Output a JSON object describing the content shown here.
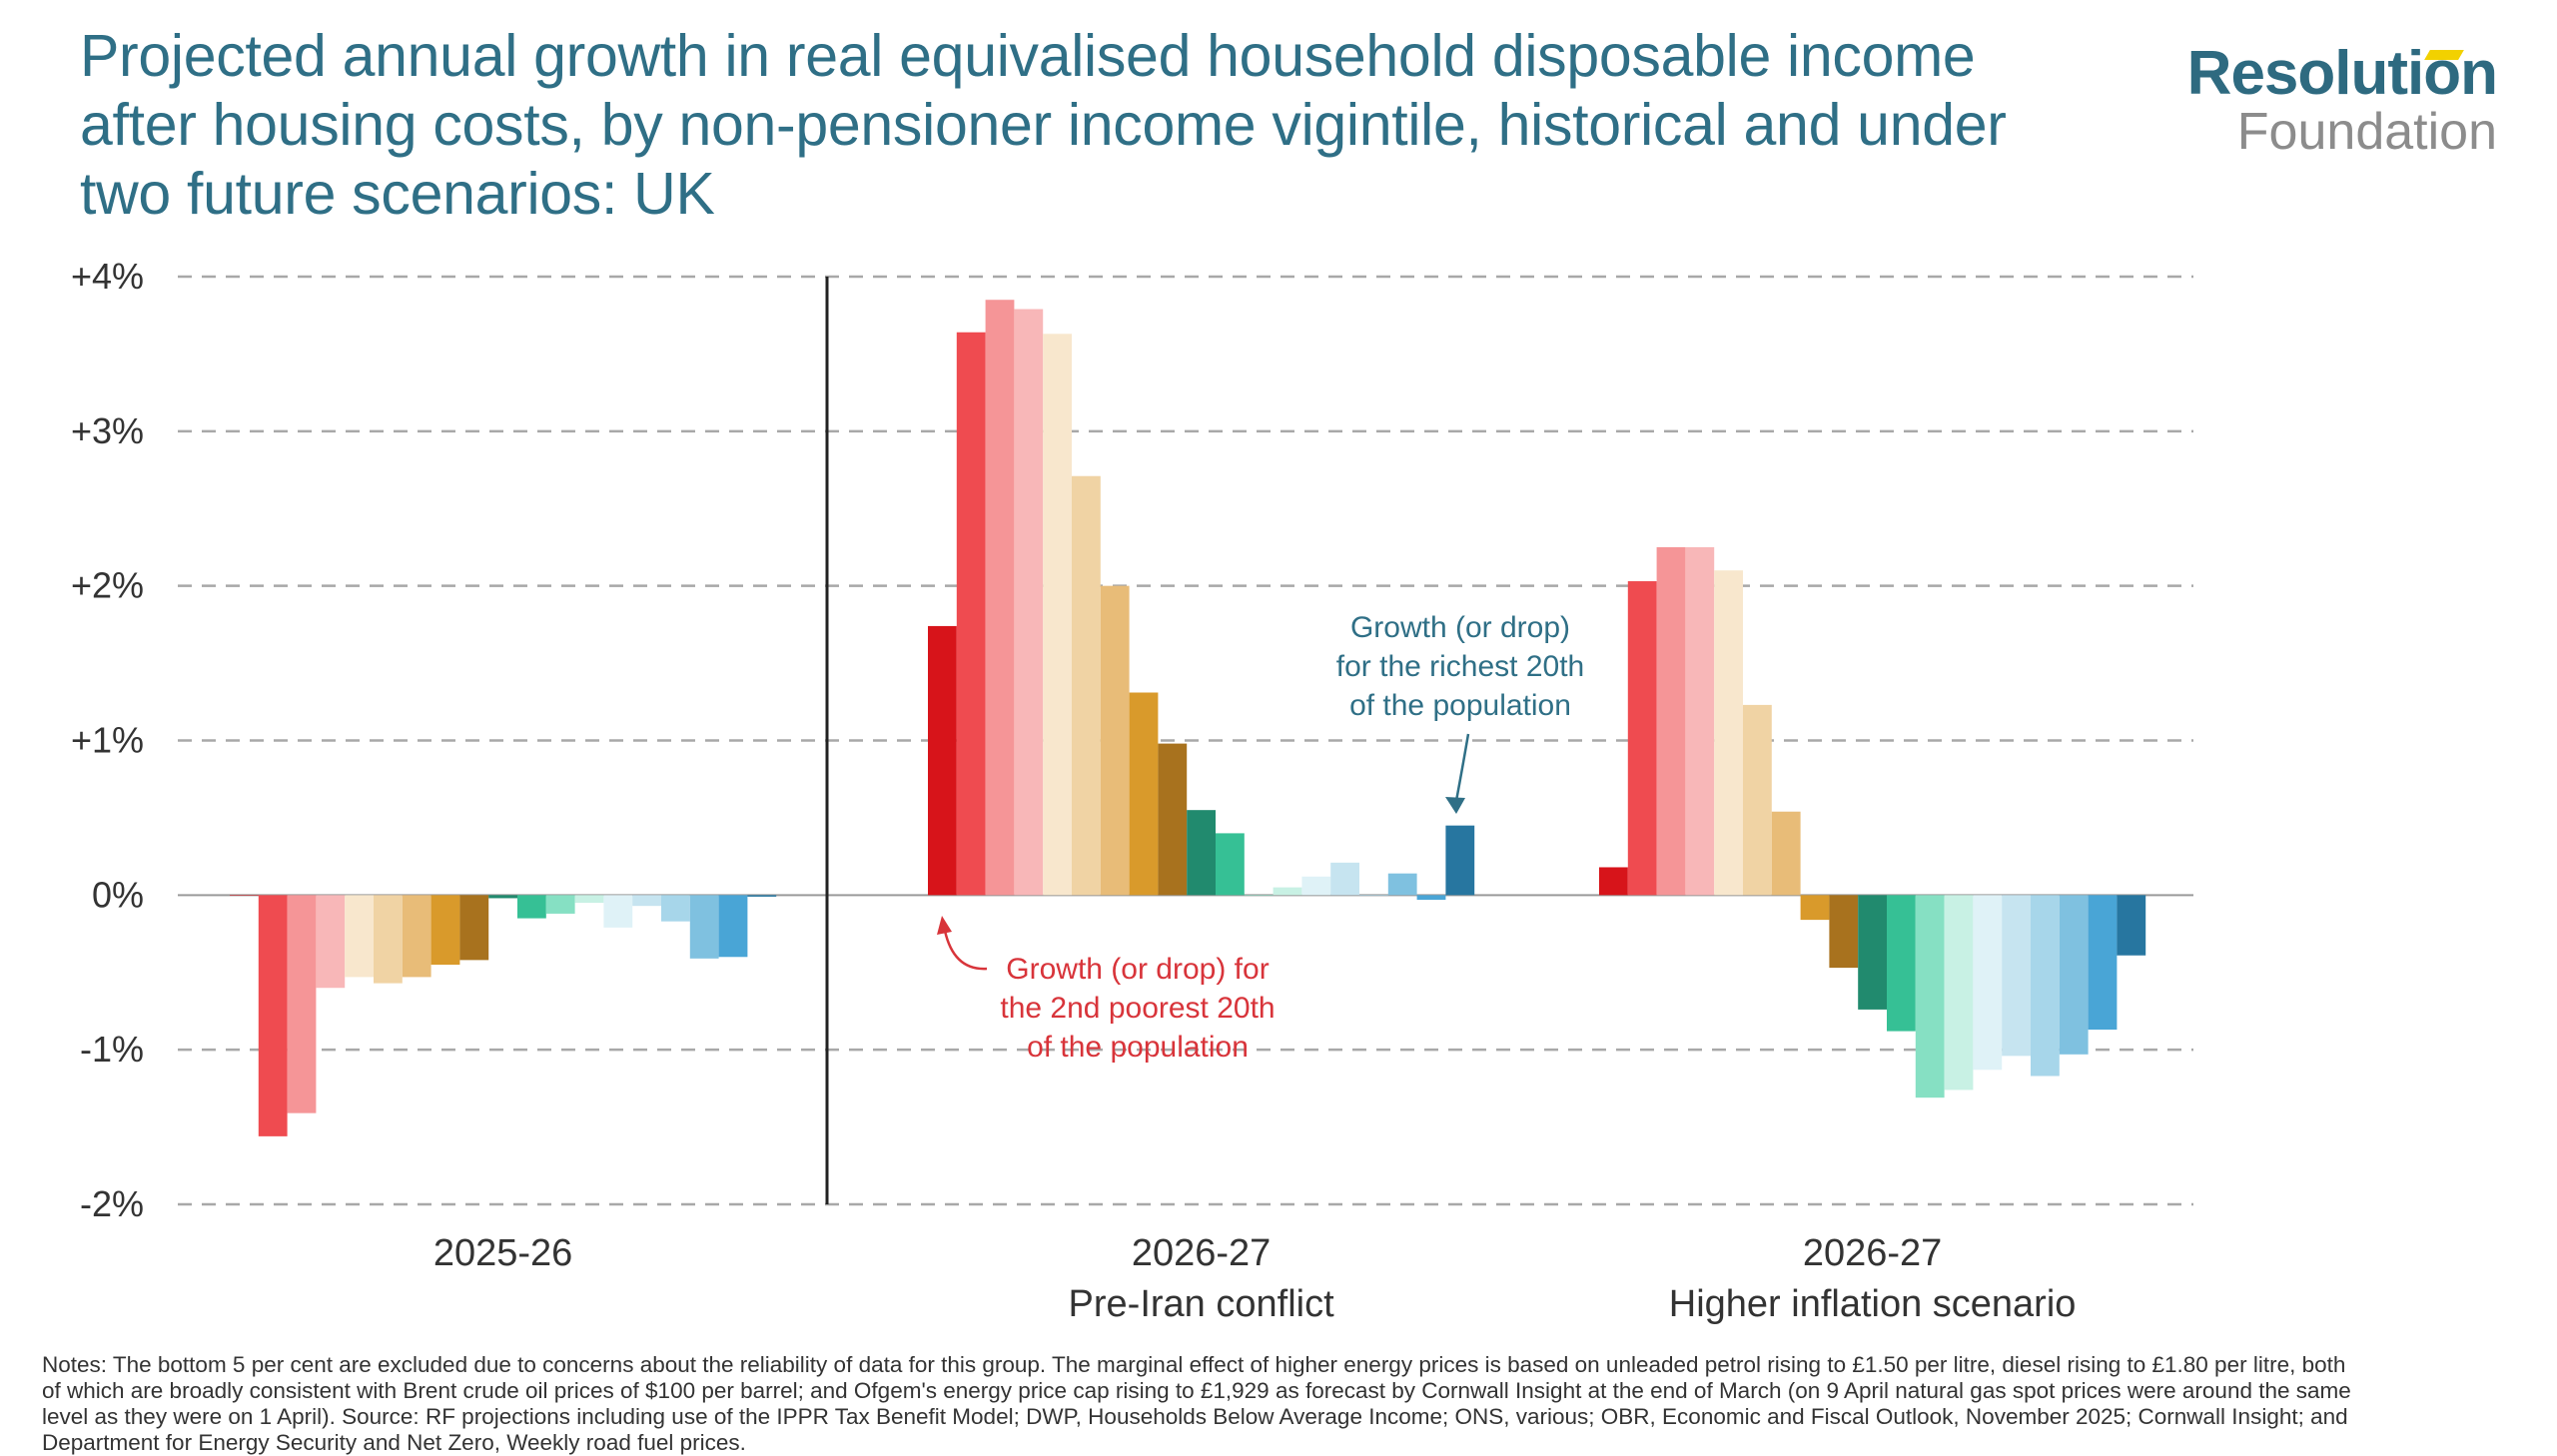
{
  "title": "Projected annual growth in real equivalised household disposable income after housing costs, by non-pensioner income vigintile, historical and under two future scenarios: UK",
  "logo": {
    "top": "Resolution",
    "bottom": "Foundation"
  },
  "notes": "Notes: The bottom 5 per cent are excluded due to concerns about the reliability of data for this group. The marginal effect of higher energy prices is based on unleaded petrol rising to £1.50 per litre, diesel rising to £1.80 per litre, both of which are broadly consistent with Brent crude oil prices of $100 per barrel; and Ofgem's energy price cap rising to £1,929 as forecast by Cornwall Insight at the end of March (on 9 April natural gas spot prices were around the same level as they were on 1 April). Source: RF projections including use of the IPPR Tax Benefit Model; DWP, Households Below Average Income; ONS, various; OBR, Economic and Fiscal Outlook, November 2025; Cornwall Insight; and Department for Energy Security and Net Zero, Weekly road fuel prices.",
  "chart_data": {
    "type": "bar",
    "title": "Projected annual growth in real equivalised household disposable income after housing costs, by non-pensioner income vigintile, historical and under two future scenarios: UK",
    "xlabel": "",
    "ylabel": "",
    "ylim": [
      -2,
      4
    ],
    "yticks": [
      {
        "value": 4,
        "label": "+4%"
      },
      {
        "value": 3,
        "label": "+3%"
      },
      {
        "value": 2,
        "label": "+2%"
      },
      {
        "value": 1,
        "label": "+1%"
      },
      {
        "value": 0,
        "label": "0%"
      },
      {
        "value": -1,
        "label": "-1%"
      },
      {
        "value": -2,
        "label": "-2%"
      }
    ],
    "grid": true,
    "bar_colors": [
      "#d7141a",
      "#ef4b50",
      "#f59597",
      "#f8b7b8",
      "#f8e7cd",
      "#f0d3a4",
      "#e8bc78",
      "#d99a2b",
      "#a8721e",
      "#218a6e",
      "#36c095",
      "#86e0c3",
      "#c8f1e4",
      "#dff2f7",
      "#c6e4f0",
      "#a7d6ea",
      "#7fc1e0",
      "#49a5d6",
      "#2776a0"
    ],
    "groups": [
      {
        "label": "2025-26",
        "sublabel": "",
        "values": [
          0.0,
          -1.56,
          -1.41,
          -0.6,
          -0.53,
          -0.57,
          -0.53,
          -0.45,
          -0.42,
          -0.02,
          -0.15,
          -0.12,
          -0.05,
          -0.21,
          -0.07,
          -0.17,
          -0.41,
          -0.4,
          -0.01
        ]
      },
      {
        "label": "2026-27",
        "sublabel": "Pre-Iran conflict",
        "values": [
          1.74,
          3.64,
          3.85,
          3.79,
          3.63,
          2.71,
          2.0,
          1.31,
          0.98,
          0.55,
          0.4,
          0.0,
          0.05,
          0.12,
          0.21,
          0.0,
          0.14,
          -0.03,
          0.45
        ]
      },
      {
        "label": "2026-27",
        "sublabel": "Higher inflation scenario",
        "values": [
          0.18,
          2.03,
          2.25,
          2.25,
          2.1,
          1.23,
          0.54,
          -0.16,
          -0.47,
          -0.74,
          -0.88,
          -1.31,
          -1.26,
          -1.13,
          -1.04,
          -1.17,
          -1.03,
          -0.87,
          -0.39
        ]
      }
    ],
    "annotations": [
      {
        "text": [
          "Growth (or drop)",
          "for the richest 20th",
          "of the population"
        ],
        "color": "#2f6f86",
        "points_to": "group 2, richest vigintile"
      },
      {
        "text": [
          "Growth (or drop) for",
          "the 2nd poorest 20th",
          "of the population"
        ],
        "color": "#d8343a",
        "points_to": "group 2, 2nd poorest vigintile"
      }
    ]
  }
}
